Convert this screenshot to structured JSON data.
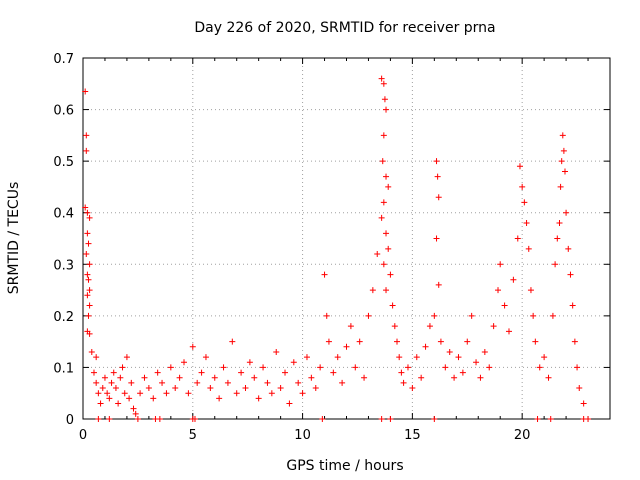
{
  "chart_data": {
    "type": "scatter",
    "title": "Day 226 of 2020, SRMTID for receiver prna",
    "xlabel": "GPS time / hours",
    "ylabel": "SRMTID / TECUs",
    "xlim": [
      0,
      24
    ],
    "ylim": [
      0,
      0.7
    ],
    "xticks": [
      0,
      5,
      10,
      15,
      20
    ],
    "yticks": [
      0,
      0.1,
      0.2,
      0.3,
      0.4,
      0.5,
      0.6,
      0.7
    ],
    "ytick_labels": [
      "0",
      "0.1",
      "0.2",
      "0.3",
      "0.4",
      "0.5",
      "0.6",
      "0.7"
    ],
    "grid": true,
    "marker": "plus",
    "color": "#ff0000",
    "series": [
      {
        "name": "SRMTID",
        "points": [
          [
            0.1,
            0.635
          ],
          [
            0.15,
            0.55
          ],
          [
            0.15,
            0.52
          ],
          [
            0.1,
            0.41
          ],
          [
            0.2,
            0.4
          ],
          [
            0.3,
            0.39
          ],
          [
            0.2,
            0.36
          ],
          [
            0.25,
            0.34
          ],
          [
            0.15,
            0.32
          ],
          [
            0.3,
            0.3
          ],
          [
            0.2,
            0.28
          ],
          [
            0.25,
            0.27
          ],
          [
            0.3,
            0.25
          ],
          [
            0.2,
            0.24
          ],
          [
            0.3,
            0.22
          ],
          [
            0.25,
            0.2
          ],
          [
            0.2,
            0.17
          ],
          [
            0.3,
            0.165
          ],
          [
            0.4,
            0.13
          ],
          [
            0.6,
            0.12
          ],
          [
            0.5,
            0.09
          ],
          [
            0.6,
            0.07
          ],
          [
            0.7,
            0.05
          ],
          [
            0.8,
            0.03
          ],
          [
            0.9,
            0.06
          ],
          [
            1.0,
            0.08
          ],
          [
            1.1,
            0.05
          ],
          [
            1.2,
            0.04
          ],
          [
            1.3,
            0.07
          ],
          [
            1.4,
            0.09
          ],
          [
            1.5,
            0.06
          ],
          [
            1.6,
            0.03
          ],
          [
            1.7,
            0.08
          ],
          [
            1.8,
            0.1
          ],
          [
            1.9,
            0.05
          ],
          [
            2.0,
            0.12
          ],
          [
            2.1,
            0.04
          ],
          [
            2.2,
            0.07
          ],
          [
            2.3,
            0.02
          ],
          [
            2.4,
            0.01
          ],
          [
            0.7,
            0.0
          ],
          [
            1.2,
            0.0
          ],
          [
            2.5,
            0.0
          ],
          [
            3.3,
            0.0
          ],
          [
            3.5,
            0.0
          ],
          [
            5.0,
            0.0
          ],
          [
            5.1,
            0.0
          ],
          [
            13.6,
            0.0
          ],
          [
            14.0,
            0.0
          ],
          [
            20.7,
            0.0
          ],
          [
            21.3,
            0.0
          ],
          [
            22.8,
            0.0
          ],
          [
            23.0,
            0.0
          ],
          [
            10.9,
            0.0
          ],
          [
            16.0,
            0.0
          ],
          [
            2.6,
            0.05
          ],
          [
            2.8,
            0.08
          ],
          [
            3.0,
            0.06
          ],
          [
            3.2,
            0.04
          ],
          [
            3.4,
            0.09
          ],
          [
            3.6,
            0.07
          ],
          [
            3.8,
            0.05
          ],
          [
            4.0,
            0.1
          ],
          [
            4.2,
            0.06
          ],
          [
            4.4,
            0.08
          ],
          [
            4.6,
            0.11
          ],
          [
            4.8,
            0.05
          ],
          [
            5.0,
            0.14
          ],
          [
            5.2,
            0.07
          ],
          [
            5.4,
            0.09
          ],
          [
            5.6,
            0.12
          ],
          [
            5.8,
            0.06
          ],
          [
            6.0,
            0.08
          ],
          [
            6.2,
            0.04
          ],
          [
            6.4,
            0.1
          ],
          [
            6.6,
            0.07
          ],
          [
            6.8,
            0.15
          ],
          [
            7.0,
            0.05
          ],
          [
            7.2,
            0.09
          ],
          [
            7.4,
            0.06
          ],
          [
            7.6,
            0.11
          ],
          [
            7.8,
            0.08
          ],
          [
            8.0,
            0.04
          ],
          [
            8.2,
            0.1
          ],
          [
            8.4,
            0.07
          ],
          [
            8.6,
            0.05
          ],
          [
            8.8,
            0.13
          ],
          [
            9.0,
            0.06
          ],
          [
            9.2,
            0.09
          ],
          [
            9.4,
            0.03
          ],
          [
            9.6,
            0.11
          ],
          [
            9.8,
            0.07
          ],
          [
            10.0,
            0.05
          ],
          [
            10.2,
            0.12
          ],
          [
            10.4,
            0.08
          ],
          [
            10.6,
            0.06
          ],
          [
            10.8,
            0.1
          ],
          [
            11.0,
            0.28
          ],
          [
            11.1,
            0.2
          ],
          [
            11.2,
            0.15
          ],
          [
            11.4,
            0.09
          ],
          [
            11.6,
            0.12
          ],
          [
            11.8,
            0.07
          ],
          [
            12.0,
            0.14
          ],
          [
            12.2,
            0.18
          ],
          [
            12.4,
            0.1
          ],
          [
            12.6,
            0.15
          ],
          [
            12.8,
            0.08
          ],
          [
            13.0,
            0.2
          ],
          [
            13.2,
            0.25
          ],
          [
            13.4,
            0.32
          ],
          [
            13.6,
            0.66
          ],
          [
            13.7,
            0.65
          ],
          [
            13.75,
            0.62
          ],
          [
            13.8,
            0.6
          ],
          [
            13.7,
            0.55
          ],
          [
            13.65,
            0.5
          ],
          [
            13.8,
            0.47
          ],
          [
            13.9,
            0.45
          ],
          [
            13.7,
            0.42
          ],
          [
            13.6,
            0.39
          ],
          [
            13.8,
            0.36
          ],
          [
            13.9,
            0.33
          ],
          [
            13.7,
            0.3
          ],
          [
            14.0,
            0.28
          ],
          [
            13.8,
            0.25
          ],
          [
            14.1,
            0.22
          ],
          [
            14.2,
            0.18
          ],
          [
            14.3,
            0.15
          ],
          [
            14.4,
            0.12
          ],
          [
            14.5,
            0.09
          ],
          [
            14.6,
            0.07
          ],
          [
            14.8,
            0.1
          ],
          [
            15.0,
            0.06
          ],
          [
            15.2,
            0.12
          ],
          [
            15.4,
            0.08
          ],
          [
            15.6,
            0.14
          ],
          [
            15.8,
            0.18
          ],
          [
            16.0,
            0.2
          ],
          [
            16.1,
            0.5
          ],
          [
            16.15,
            0.47
          ],
          [
            16.2,
            0.43
          ],
          [
            16.1,
            0.35
          ],
          [
            16.2,
            0.26
          ],
          [
            16.3,
            0.15
          ],
          [
            16.5,
            0.1
          ],
          [
            16.7,
            0.13
          ],
          [
            16.9,
            0.08
          ],
          [
            17.1,
            0.12
          ],
          [
            17.3,
            0.09
          ],
          [
            17.5,
            0.15
          ],
          [
            17.7,
            0.2
          ],
          [
            17.9,
            0.11
          ],
          [
            18.1,
            0.08
          ],
          [
            18.3,
            0.13
          ],
          [
            18.5,
            0.1
          ],
          [
            18.7,
            0.18
          ],
          [
            18.9,
            0.25
          ],
          [
            19.0,
            0.3
          ],
          [
            19.2,
            0.22
          ],
          [
            19.4,
            0.17
          ],
          [
            19.6,
            0.27
          ],
          [
            19.8,
            0.35
          ],
          [
            19.9,
            0.49
          ],
          [
            20.0,
            0.45
          ],
          [
            20.1,
            0.42
          ],
          [
            20.2,
            0.38
          ],
          [
            20.3,
            0.33
          ],
          [
            20.4,
            0.25
          ],
          [
            20.5,
            0.2
          ],
          [
            20.6,
            0.15
          ],
          [
            20.8,
            0.1
          ],
          [
            21.0,
            0.12
          ],
          [
            21.2,
            0.08
          ],
          [
            21.4,
            0.2
          ],
          [
            21.5,
            0.3
          ],
          [
            21.6,
            0.35
          ],
          [
            21.7,
            0.38
          ],
          [
            21.75,
            0.45
          ],
          [
            21.8,
            0.5
          ],
          [
            21.85,
            0.55
          ],
          [
            21.9,
            0.52
          ],
          [
            21.95,
            0.48
          ],
          [
            22.0,
            0.4
          ],
          [
            22.1,
            0.33
          ],
          [
            22.2,
            0.28
          ],
          [
            22.3,
            0.22
          ],
          [
            22.4,
            0.15
          ],
          [
            22.5,
            0.1
          ],
          [
            22.6,
            0.06
          ],
          [
            22.8,
            0.03
          ]
        ]
      }
    ]
  }
}
